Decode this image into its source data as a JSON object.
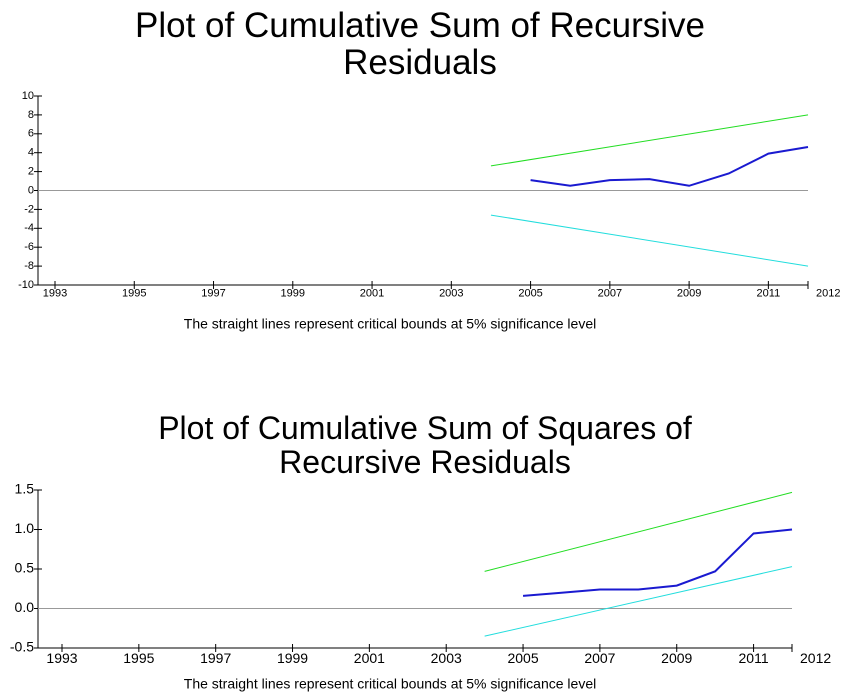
{
  "chart_data": [
    {
      "type": "line",
      "title": "Plot of Cumulative Sum of Recursive Residuals",
      "note": "The straight lines represent critical bounds at 5% significance level",
      "xlim": [
        1993,
        2012
      ],
      "xticks": [
        1993,
        1995,
        1997,
        1999,
        2001,
        2003,
        2005,
        2007,
        2009,
        2011,
        2012
      ],
      "ylim": [
        -10,
        10
      ],
      "yticks": [
        -10,
        -8,
        -6,
        -4,
        -2,
        0,
        2,
        4,
        6,
        8,
        10
      ],
      "zero_line": true,
      "series": [
        {
          "color": "#1a1ad0",
          "x": [
            2005,
            2006,
            2007,
            2008,
            2009,
            2010,
            2011,
            2012
          ],
          "values": [
            1.1,
            0.5,
            1.1,
            1.2,
            0.5,
            1.8,
            3.9,
            4.6
          ]
        },
        {
          "color": "#22dd22",
          "x": [
            2004,
            2012
          ],
          "values": [
            2.6,
            8.0
          ]
        },
        {
          "color": "#22dddd",
          "x": [
            2004,
            2012
          ],
          "values": [
            -2.6,
            -8.0
          ]
        }
      ]
    },
    {
      "type": "line",
      "title": "Plot of Cumulative Sum of Squares of Recursive Residuals",
      "note": "The straight lines represent critical bounds at 5% significance level",
      "xlim": [
        1993,
        2012
      ],
      "xticks": [
        1993,
        1995,
        1997,
        1999,
        2001,
        2003,
        2005,
        2007,
        2009,
        2011,
        2012
      ],
      "ylim": [
        -0.5,
        1.5
      ],
      "yticks": [
        {
          "value": -0.5,
          "label": "-0.5"
        },
        {
          "value": 0,
          "label": "0.0"
        },
        0.5,
        {
          "value": 1,
          "label": "1.0"
        },
        {
          "value": 1.5,
          "label": "1.5"
        }
      ],
      "zero_line": true,
      "series": [
        {
          "color": "#1a1ad0",
          "x": [
            2005,
            2006,
            2007,
            2008,
            2009,
            2010,
            2011,
            2012
          ],
          "values": [
            0.16,
            0.2,
            0.24,
            0.24,
            0.29,
            0.47,
            0.95,
            1.0
          ]
        },
        {
          "color": "#22dd22",
          "x": [
            2004,
            2012
          ],
          "values": [
            0.47,
            1.47
          ]
        },
        {
          "color": "#22dddd",
          "x": [
            2004,
            2012
          ],
          "values": [
            -0.35,
            0.53
          ]
        }
      ]
    }
  ]
}
